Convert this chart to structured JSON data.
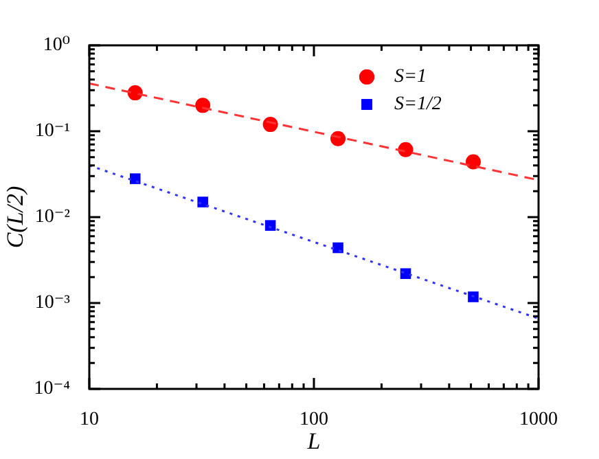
{
  "chart_data": {
    "type": "scatter",
    "xlabel": "L",
    "ylabel": "C(L/2)",
    "log": "xy",
    "grid": false,
    "legend": "top right",
    "xlim": [
      10,
      1000
    ],
    "ylim": [
      0.0001,
      1
    ],
    "xticks": [
      {
        "value": 10,
        "label": "10"
      },
      {
        "value": 20,
        "label": null
      },
      {
        "value": 30,
        "label": null
      },
      {
        "value": 40,
        "label": null
      },
      {
        "value": 50,
        "label": null
      },
      {
        "value": 60,
        "label": null
      },
      {
        "value": 70,
        "label": null
      },
      {
        "value": 80,
        "label": null
      },
      {
        "value": 90,
        "label": null
      },
      {
        "value": 100,
        "label": "100"
      },
      {
        "value": 200,
        "label": null
      },
      {
        "value": 300,
        "label": null
      },
      {
        "value": 400,
        "label": null
      },
      {
        "value": 500,
        "label": null
      },
      {
        "value": 600,
        "label": null
      },
      {
        "value": 700,
        "label": null
      },
      {
        "value": 800,
        "label": null
      },
      {
        "value": 900,
        "label": null
      },
      {
        "value": 1000,
        "label": "1000"
      }
    ],
    "yticks": [
      {
        "value": 0.0001,
        "label": "10⁻⁴"
      },
      {
        "value": 0.0002,
        "label": null
      },
      {
        "value": 0.0003,
        "label": null
      },
      {
        "value": 0.0004,
        "label": null
      },
      {
        "value": 0.0005,
        "label": null
      },
      {
        "value": 0.0006,
        "label": null
      },
      {
        "value": 0.0007,
        "label": null
      },
      {
        "value": 0.0008,
        "label": null
      },
      {
        "value": 0.0009,
        "label": null
      },
      {
        "value": 0.001,
        "label": "10⁻³"
      },
      {
        "value": 0.002,
        "label": null
      },
      {
        "value": 0.003,
        "label": null
      },
      {
        "value": 0.004,
        "label": null
      },
      {
        "value": 0.005,
        "label": null
      },
      {
        "value": 0.006,
        "label": null
      },
      {
        "value": 0.007,
        "label": null
      },
      {
        "value": 0.008,
        "label": null
      },
      {
        "value": 0.009,
        "label": null
      },
      {
        "value": 0.01,
        "label": "10⁻²"
      },
      {
        "value": 0.02,
        "label": null
      },
      {
        "value": 0.03,
        "label": null
      },
      {
        "value": 0.04,
        "label": null
      },
      {
        "value": 0.05,
        "label": null
      },
      {
        "value": 0.06,
        "label": null
      },
      {
        "value": 0.07,
        "label": null
      },
      {
        "value": 0.08,
        "label": null
      },
      {
        "value": 0.09,
        "label": null
      },
      {
        "value": 0.1,
        "label": "10⁻¹"
      },
      {
        "value": 0.2,
        "label": null
      },
      {
        "value": 0.3,
        "label": null
      },
      {
        "value": 0.4,
        "label": null
      },
      {
        "value": 0.5,
        "label": null
      },
      {
        "value": 0.6,
        "label": null
      },
      {
        "value": 0.7,
        "label": null
      },
      {
        "value": 0.8,
        "label": null
      },
      {
        "value": 0.9,
        "label": null
      },
      {
        "value": 1,
        "label": "10⁰"
      }
    ],
    "series": [
      {
        "type": "line",
        "color": "#ff3333",
        "line_style": "dashed",
        "marker": "none",
        "x": [
          10,
          1000
        ],
        "values": [
          0.36,
          0.027
        ]
      },
      {
        "type": "line",
        "color": "#3333ff",
        "line_style": "dotted",
        "marker": "none",
        "x": [
          10,
          1000
        ],
        "values": [
          0.04,
          0.00066
        ]
      },
      {
        "type": "scatter",
        "name": "S=1",
        "color": "#ff0000",
        "marker": "circle",
        "x": [
          16,
          32,
          64,
          128,
          256,
          512
        ],
        "values": [
          0.28,
          0.2,
          0.12,
          0.082,
          0.061,
          0.044
        ]
      },
      {
        "type": "scatter",
        "name": "S=1/2",
        "color": "#0000ff",
        "marker": "square",
        "x": [
          16,
          32,
          64,
          128,
          256,
          512
        ],
        "values": [
          0.028,
          0.015,
          0.008,
          0.0044,
          0.0022,
          0.00118
        ]
      }
    ]
  }
}
